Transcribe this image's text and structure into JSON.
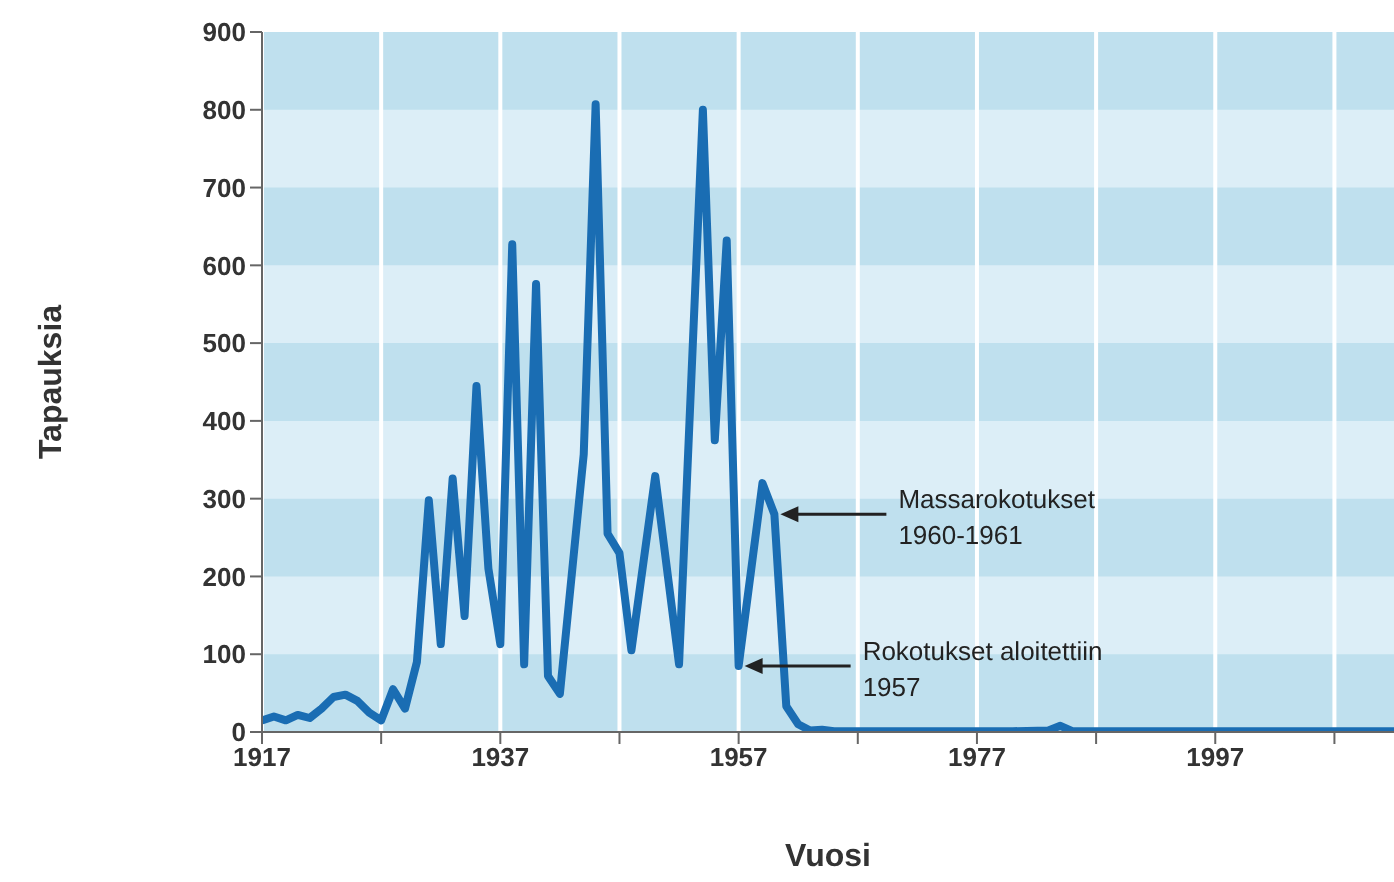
{
  "chart_data": {
    "type": "line",
    "xlabel": "Vuosi",
    "ylabel": "Tapauksia",
    "x": [
      1917,
      1918,
      1919,
      1920,
      1921,
      1922,
      1923,
      1924,
      1925,
      1926,
      1927,
      1928,
      1929,
      1930,
      1931,
      1932,
      1933,
      1934,
      1935,
      1936,
      1937,
      1938,
      1939,
      1940,
      1941,
      1942,
      1944,
      1945,
      1946,
      1947,
      1948,
      1950,
      1952,
      1954,
      1955,
      1956,
      1957,
      1959,
      1960,
      1961,
      1962,
      1963,
      1964,
      1965,
      1970,
      1980,
      1983,
      1984,
      1985,
      1990,
      2000,
      2012
    ],
    "series": [
      {
        "color": "#1a6db3",
        "values": [
          15,
          20,
          15,
          22,
          18,
          30,
          45,
          48,
          40,
          25,
          15,
          55,
          30,
          90,
          298,
          113,
          326,
          149,
          445,
          210,
          113,
          627,
          87,
          576,
          72,
          49,
          357,
          807,
          255,
          230,
          105,
          329,
          87,
          800,
          375,
          632,
          85,
          320,
          280,
          33,
          10,
          2,
          3,
          1,
          1,
          1,
          2,
          8,
          1,
          1,
          1,
          1
        ]
      }
    ],
    "xlim": [
      1917,
      2012
    ],
    "xticks": [
      1917,
      {
        "value": 1927,
        "label": null
      },
      1937,
      {
        "value": 1947,
        "label": null
      },
      1957,
      {
        "value": 1967,
        "label": null
      },
      1977,
      {
        "value": 1987,
        "label": null
      },
      1997,
      {
        "value": 2007,
        "label": null
      }
    ],
    "ylim": [
      0,
      900
    ],
    "yticks": [
      0,
      100,
      200,
      300,
      400,
      500,
      600,
      700,
      800,
      900
    ],
    "grid": "x",
    "legend": false,
    "bands": [
      {
        "axis": "y",
        "from": 0,
        "to": 100,
        "color": "#bfe0ee"
      },
      {
        "axis": "y",
        "from": 200,
        "to": 300,
        "color": "#bfe0ee"
      },
      {
        "axis": "y",
        "from": 400,
        "to": 500,
        "color": "#bfe0ee"
      },
      {
        "axis": "y",
        "from": 600,
        "to": 700,
        "color": "#bfe0ee"
      },
      {
        "axis": "y",
        "from": 800,
        "to": 900,
        "color": "#bfe0ee"
      }
    ],
    "marker": "none",
    "line_style": "solid",
    "annotations": [
      {
        "text": "Massarokotukset 1960-1961",
        "x": 1960,
        "y": 280
      },
      {
        "text": "Rokotukset aloitettiin 1957",
        "x": 1957,
        "y": 85
      }
    ]
  }
}
